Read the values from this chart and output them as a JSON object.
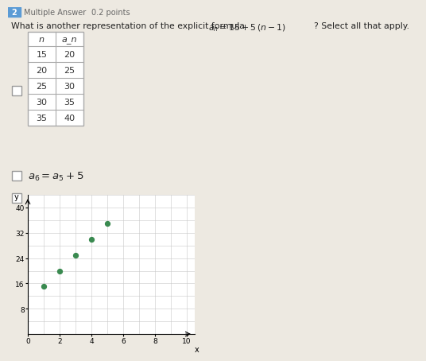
{
  "bg_color": "#ede9e1",
  "question_label": "2",
  "question_type": "Multiple Answer",
  "question_points": "0.2 points",
  "table_headers": [
    "n",
    "a_n"
  ],
  "table_rows": [
    [
      "15",
      "20"
    ],
    [
      "20",
      "25"
    ],
    [
      "25",
      "30"
    ],
    [
      "30",
      "35"
    ],
    [
      "35",
      "40"
    ]
  ],
  "formula_text": "a_6 = a_5 + 5",
  "graph_x_points": [
    1,
    2,
    3,
    4,
    5
  ],
  "graph_y_points": [
    15,
    20,
    25,
    30,
    35
  ],
  "graph_xlim": [
    0,
    10.5
  ],
  "graph_ylim": [
    0,
    44
  ],
  "graph_xticks": [
    0,
    2,
    4,
    6,
    8,
    10
  ],
  "graph_yticks": [
    8,
    16,
    24,
    32,
    40
  ],
  "point_color": "#3a8a50",
  "grid_color": "#c8c8c8",
  "header_bar_color": "#5b9bd5",
  "checkbox_edge_color": "#999999",
  "table_border_color": "#aaaaaa",
  "text_color": "#222222",
  "muted_color": "#666666"
}
